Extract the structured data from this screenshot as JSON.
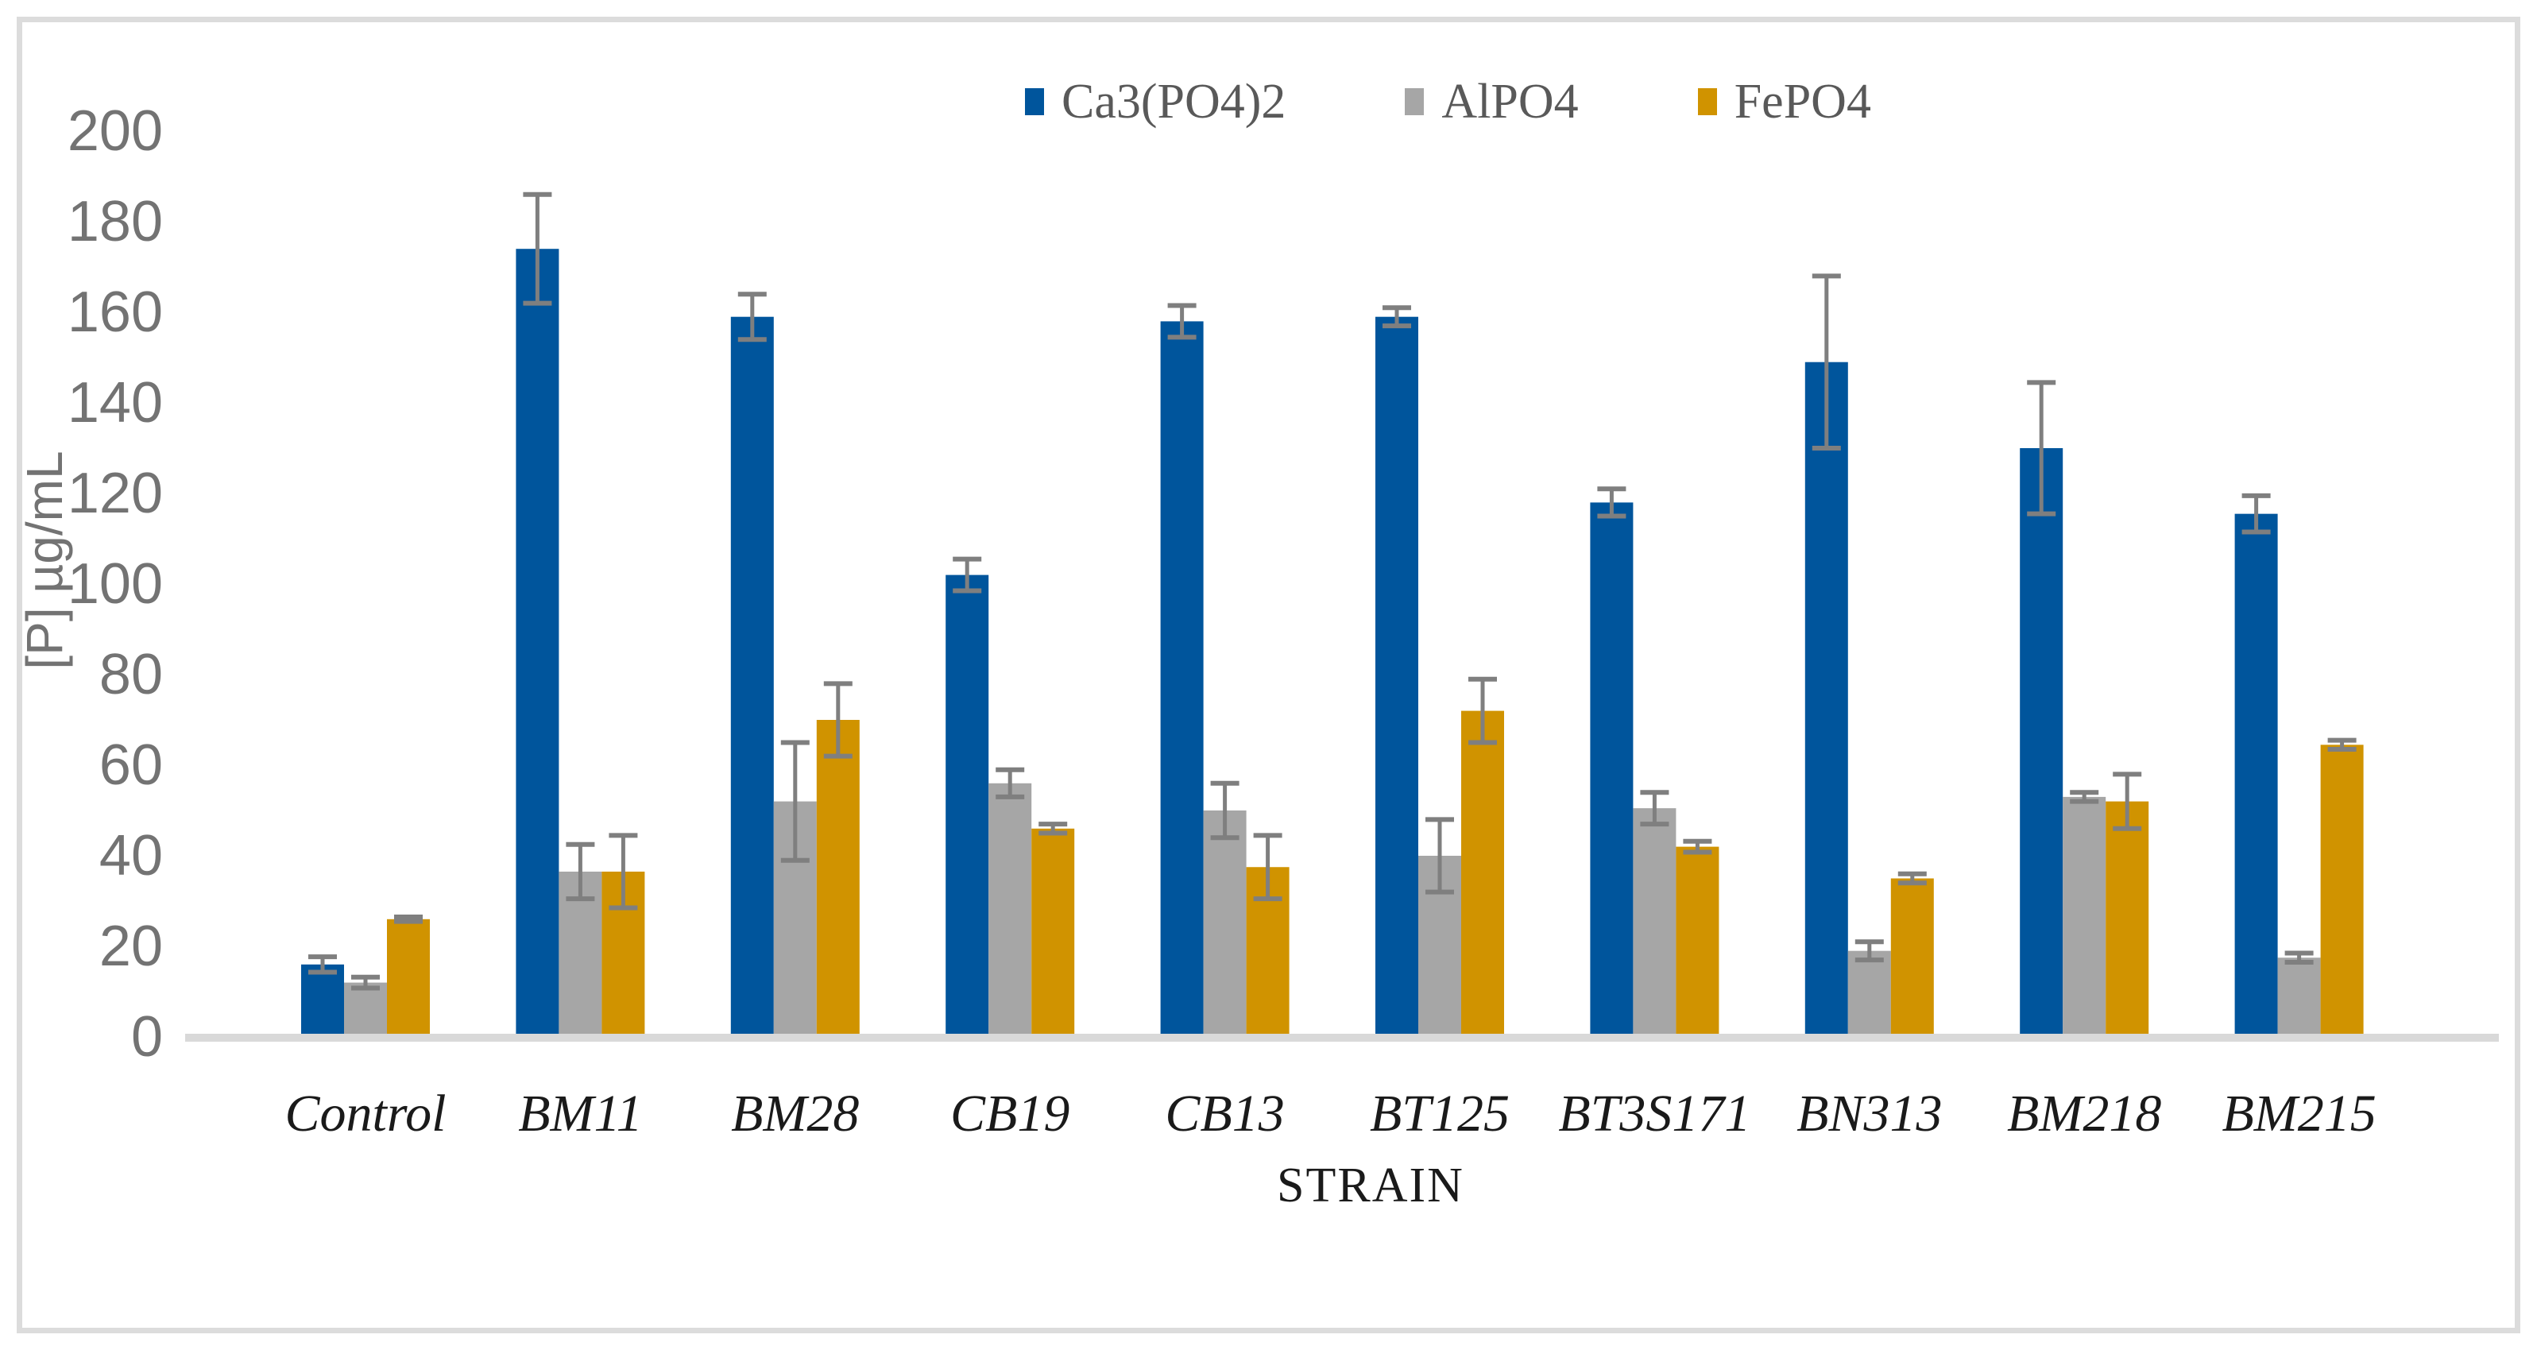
{
  "figure": {
    "y_axis_title": "[P] µg/mL",
    "x_axis_title": "STRAIN",
    "background_color": "#FFFFFF",
    "border_color": "#DCDCDC",
    "axis_line_color": "#D9D9D9",
    "tick_label_color": "#737373",
    "category_label_color": "#1A1A1A",
    "legend_text_color": "#595959",
    "error_bar_color": "#7F7F7F"
  },
  "chart_data": {
    "type": "bar",
    "title": "",
    "xlabel": "STRAIN",
    "ylabel": "[P] µg/mL",
    "ylim": [
      0,
      200
    ],
    "ytick_step": 20,
    "ytick_labels": [
      "0",
      "20",
      "40",
      "60",
      "80",
      "100",
      "120",
      "140",
      "160",
      "180",
      "200"
    ],
    "grid": false,
    "error_bars": true,
    "legend_position": "top-center",
    "categories": [
      "Control",
      "BM11",
      "BM28",
      "CB19",
      "CB13",
      "BT125",
      "BT3S171",
      "BN313",
      "BM218",
      "BM215"
    ],
    "series": [
      {
        "name": "Ca3(PO4)2",
        "key": "ca3po42",
        "color": "#00559C",
        "values": [
          16,
          174,
          159,
          102,
          158,
          159,
          118,
          149,
          130,
          115.5
        ],
        "errors": [
          1.7,
          12,
          5,
          3.5,
          3.5,
          2,
          3,
          19,
          14.5,
          4
        ]
      },
      {
        "name": "AlPO4",
        "key": "alpo4",
        "color": "#A6A6A6",
        "values": [
          12,
          36.5,
          52,
          56,
          50,
          40,
          50.5,
          19,
          53,
          17.5
        ],
        "errors": [
          1.2,
          6,
          13,
          3,
          6,
          8,
          3.5,
          2,
          1,
          1
        ]
      },
      {
        "name": "FePO4",
        "key": "fepo4",
        "color": "#D09300",
        "values": [
          26,
          36.5,
          70,
          46,
          37.5,
          72,
          42,
          35,
          52,
          64.5
        ],
        "errors": [
          0.5,
          8,
          8,
          1,
          7,
          7,
          1.2,
          1,
          6,
          1
        ]
      }
    ]
  }
}
